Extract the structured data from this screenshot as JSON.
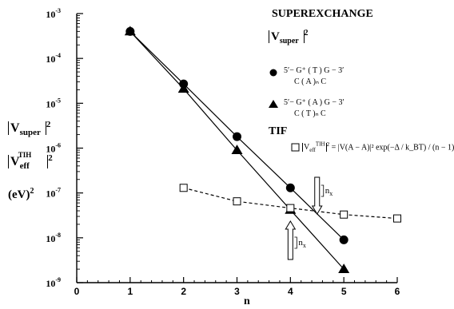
{
  "chart_data": {
    "type": "scatter",
    "title": "SUPEREXCHANGE",
    "xlabel": "n",
    "ylabel": [
      "|V_super|^2",
      "|V_eff^TIH|^2",
      "(eV)^2"
    ],
    "xlim": [
      0,
      6
    ],
    "ylim_log10": [
      -9,
      -3
    ],
    "x_ticks": [
      "0",
      "1",
      "2",
      "3",
      "4",
      "5",
      "6"
    ],
    "y_ticks": [
      "10^-9",
      "10^-8",
      "10^-7",
      "10^-6",
      "10^-5",
      "10^-4",
      "10^-3"
    ],
    "y_scale": "log",
    "grid": false,
    "series": [
      {
        "key": "circles",
        "marker": "circle",
        "line": "solid",
        "x": [
          1,
          2,
          3,
          4,
          5
        ],
        "y": [
          0.0004,
          2.7e-05,
          1.8e-06,
          1.3e-07,
          9e-09
        ]
      },
      {
        "key": "triangles",
        "marker": "triangle",
        "line": "solid",
        "x": [
          1,
          2,
          3,
          4,
          5
        ],
        "y": [
          0.0004,
          2.1e-05,
          9e-07,
          4.2e-08,
          2e-09
        ]
      },
      {
        "key": "squares",
        "marker": "square",
        "line": "dashed",
        "x": [
          2,
          3,
          4,
          5,
          6
        ],
        "y": [
          1.3e-07,
          6.5e-08,
          4.6e-08,
          3.3e-08,
          2.7e-08
        ]
      }
    ],
    "annotations": [
      {
        "text": "n",
        "sub": "x",
        "arrow": "down",
        "at_x": 4.5
      },
      {
        "text": "n",
        "sub": "x",
        "arrow": "up",
        "at_x": 4.0
      }
    ]
  },
  "legend": {
    "title": "SUPEREXCHANGE",
    "vsuper_label": "V",
    "vsuper_sub": "super",
    "tif_label": "TIF",
    "formula": "= |V(A − A)|² exp(−Δ / k_BT) / (n − 1)",
    "seq1_top": "5′− G⁺ ( T ) G − 3′",
    "seq1_bottom": "C ( A )ₙ C",
    "seq2_top": "5′− G⁺ ( A ) G − 3′",
    "seq2_bottom": "C ( T )ₙ C"
  },
  "ylabels": {
    "vsuper": "V",
    "vsuper_sub": "super",
    "veff": "V",
    "veff_sub": "eff",
    "veff_sup": "TIH",
    "units": "(eV)"
  }
}
